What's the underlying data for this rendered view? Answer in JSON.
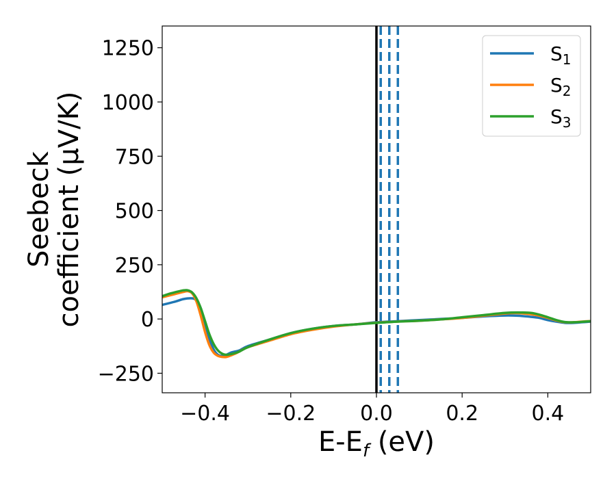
{
  "chart_data": {
    "type": "line",
    "xlabel": {
      "main": "E-E",
      "sub": "f",
      "rest": " (eV)"
    },
    "ylabel": {
      "line1": "Seebeck",
      "line2": "coefficient  (μV/K)"
    },
    "xlim": [
      -0.5,
      0.5
    ],
    "ylim": [
      -340,
      1350
    ],
    "x_ticks": [
      -0.4,
      -0.2,
      0.0,
      0.2,
      0.4
    ],
    "x_tick_labels": [
      "−0.4",
      "−0.2",
      "0.0",
      "0.2",
      "0.4"
    ],
    "y_ticks": [
      -250,
      0,
      250,
      500,
      750,
      1000,
      1250
    ],
    "y_tick_labels": [
      "−250",
      "0",
      "250",
      "500",
      "750",
      "1000",
      "1250"
    ],
    "grid": false,
    "legend_position": "top-right",
    "vertical_lines": [
      {
        "x": 0.0,
        "style": "solid",
        "color": "#000000"
      },
      {
        "x": 0.01,
        "style": "dashed",
        "color": "#1f77b4"
      },
      {
        "x": 0.03,
        "style": "dashed",
        "color": "#1f77b4"
      },
      {
        "x": 0.05,
        "style": "dashed",
        "color": "#1f77b4"
      }
    ],
    "series": [
      {
        "name": "S",
        "sub": "1",
        "color": "#1f77b4",
        "x": [
          -0.5,
          -0.47,
          -0.45,
          -0.43,
          -0.42,
          -0.41,
          -0.4,
          -0.39,
          -0.38,
          -0.37,
          -0.36,
          -0.35,
          -0.34,
          -0.33,
          -0.32,
          -0.3,
          -0.25,
          -0.2,
          -0.15,
          -0.1,
          -0.05,
          0.0,
          0.05,
          0.1,
          0.15,
          0.2,
          0.25,
          0.3,
          0.33,
          0.36,
          0.38,
          0.4,
          0.42,
          0.44,
          0.46,
          0.48,
          0.5
        ],
        "y": [
          65,
          80,
          92,
          95,
          85,
          50,
          -20,
          -90,
          -140,
          -165,
          -170,
          -165,
          -155,
          -150,
          -145,
          -125,
          -95,
          -65,
          -45,
          -32,
          -25,
          -15,
          -10,
          -5,
          0,
          5,
          12,
          16,
          15,
          10,
          5,
          -5,
          -12,
          -18,
          -18,
          -15,
          -12
        ]
      },
      {
        "name": "S",
        "sub": "2",
        "color": "#ff7f0e",
        "x": [
          -0.5,
          -0.47,
          -0.45,
          -0.44,
          -0.43,
          -0.42,
          -0.41,
          -0.4,
          -0.39,
          -0.38,
          -0.37,
          -0.36,
          -0.35,
          -0.34,
          -0.33,
          -0.32,
          -0.3,
          -0.25,
          -0.2,
          -0.15,
          -0.1,
          -0.05,
          0.0,
          0.05,
          0.1,
          0.15,
          0.2,
          0.25,
          0.3,
          0.33,
          0.36,
          0.38,
          0.4,
          0.42,
          0.44,
          0.46,
          0.48,
          0.5
        ],
        "y": [
          100,
          115,
          125,
          128,
          118,
          80,
          15,
          -60,
          -120,
          -155,
          -170,
          -175,
          -175,
          -168,
          -160,
          -150,
          -130,
          -100,
          -70,
          -50,
          -35,
          -25,
          -17,
          -12,
          -8,
          -2,
          5,
          15,
          25,
          27,
          22,
          15,
          5,
          -7,
          -15,
          -15,
          -12,
          -10
        ]
      },
      {
        "name": "S",
        "sub": "3",
        "color": "#2ca02c",
        "x": [
          -0.5,
          -0.48,
          -0.46,
          -0.45,
          -0.44,
          -0.43,
          -0.42,
          -0.41,
          -0.4,
          -0.39,
          -0.38,
          -0.37,
          -0.36,
          -0.35,
          -0.34,
          -0.33,
          -0.32,
          -0.3,
          -0.25,
          -0.2,
          -0.15,
          -0.1,
          -0.05,
          0.0,
          0.05,
          0.1,
          0.15,
          0.2,
          0.25,
          0.3,
          0.33,
          0.36,
          0.38,
          0.4,
          0.42,
          0.44,
          0.46,
          0.48,
          0.5
        ],
        "y": [
          105,
          118,
          128,
          132,
          132,
          122,
          95,
          50,
          -10,
          -70,
          -115,
          -145,
          -160,
          -165,
          -162,
          -157,
          -150,
          -130,
          -95,
          -65,
          -45,
          -32,
          -25,
          -18,
          -12,
          -8,
          -2,
          8,
          18,
          28,
          30,
          28,
          20,
          8,
          -5,
          -14,
          -15,
          -13,
          -10
        ]
      }
    ]
  }
}
